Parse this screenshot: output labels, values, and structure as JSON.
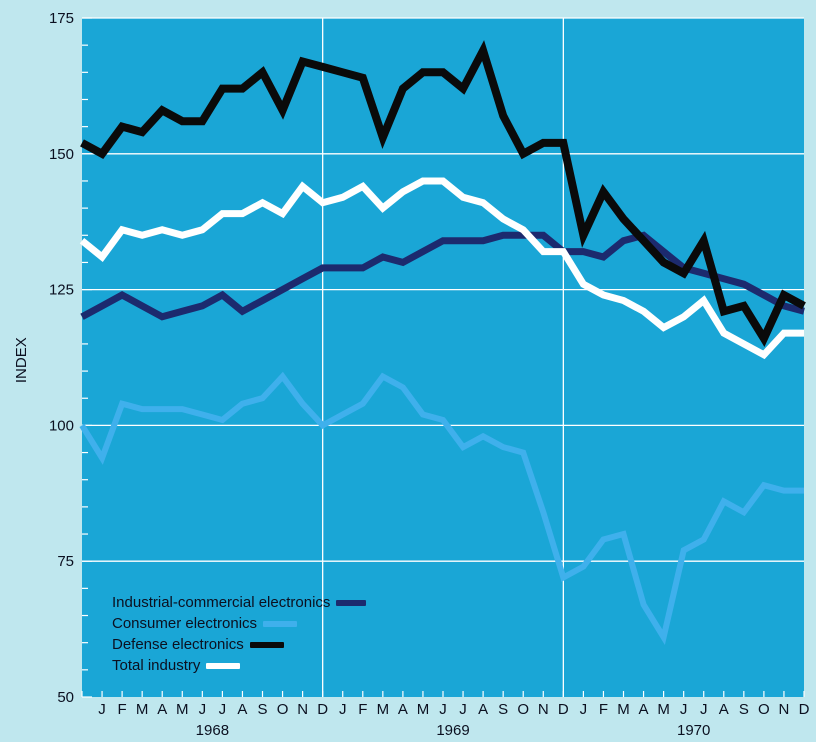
{
  "chart_data": {
    "type": "line",
    "ylabel": "INDEX",
    "xlabel": "",
    "title": "",
    "ylim": [
      50,
      175
    ],
    "yticks": [
      50,
      75,
      100,
      125,
      150,
      175
    ],
    "y_minor_step": 5,
    "grid": true,
    "colors": {
      "plot_background": "#1aa6d6",
      "gridline": "#ffffff",
      "page_background": "#bfe7ee"
    },
    "x_months": [
      "D",
      "J",
      "F",
      "M",
      "A",
      "M",
      "J",
      "J",
      "A",
      "S",
      "O",
      "N",
      "D",
      "J",
      "F",
      "M",
      "A",
      "M",
      "J",
      "J",
      "A",
      "S",
      "O",
      "N",
      "D",
      "J",
      "F",
      "M",
      "A",
      "M",
      "J",
      "J",
      "A",
      "S",
      "O",
      "N",
      "D"
    ],
    "month_label_start_index": 1,
    "years": [
      {
        "label": "1968",
        "center_index": 6.5
      },
      {
        "label": "1969",
        "center_index": 18.5
      },
      {
        "label": "1970",
        "center_index": 30.5
      }
    ],
    "year_dividers": [
      12,
      24
    ],
    "series": [
      {
        "name": "Industrial-commercial electronics",
        "color": "#1c2a6e",
        "width": 7,
        "values": [
          120,
          122,
          124,
          122,
          120,
          121,
          122,
          124,
          121,
          123,
          125,
          127,
          129,
          129,
          129,
          131,
          130,
          132,
          134,
          134,
          134,
          135,
          135,
          135,
          132,
          132,
          131,
          134,
          135,
          132,
          129,
          128,
          127,
          126,
          124,
          122,
          121
        ]
      },
      {
        "name": "Consumer electronics",
        "color": "#3fb0ec",
        "width": 6,
        "values": [
          100,
          94,
          104,
          103,
          103,
          103,
          102,
          101,
          104,
          105,
          109,
          104,
          100,
          102,
          104,
          109,
          107,
          102,
          101,
          96,
          98,
          96,
          95,
          84,
          72,
          74,
          79,
          80,
          67,
          61,
          77,
          79,
          86,
          84,
          89,
          88,
          88
        ]
      },
      {
        "name": "Defense electronics",
        "color": "#0a0a0a",
        "width": 8,
        "values": [
          152,
          150,
          155,
          154,
          158,
          156,
          156,
          162,
          162,
          165,
          158,
          167,
          166,
          165,
          164,
          153,
          162,
          165,
          165,
          162,
          169,
          157,
          150,
          152,
          152,
          135,
          143,
          138,
          134,
          130,
          128,
          134,
          121,
          122,
          116,
          124,
          122
        ]
      },
      {
        "name": "Total industry",
        "color": "#ffffff",
        "width": 7,
        "values": [
          134,
          131,
          136,
          135,
          136,
          135,
          136,
          139,
          139,
          141,
          139,
          144,
          141,
          142,
          144,
          140,
          143,
          145,
          145,
          142,
          141,
          138,
          136,
          132,
          132,
          126,
          124,
          123,
          121,
          118,
          120,
          123,
          117,
          115,
          113,
          117,
          117
        ]
      }
    ]
  }
}
